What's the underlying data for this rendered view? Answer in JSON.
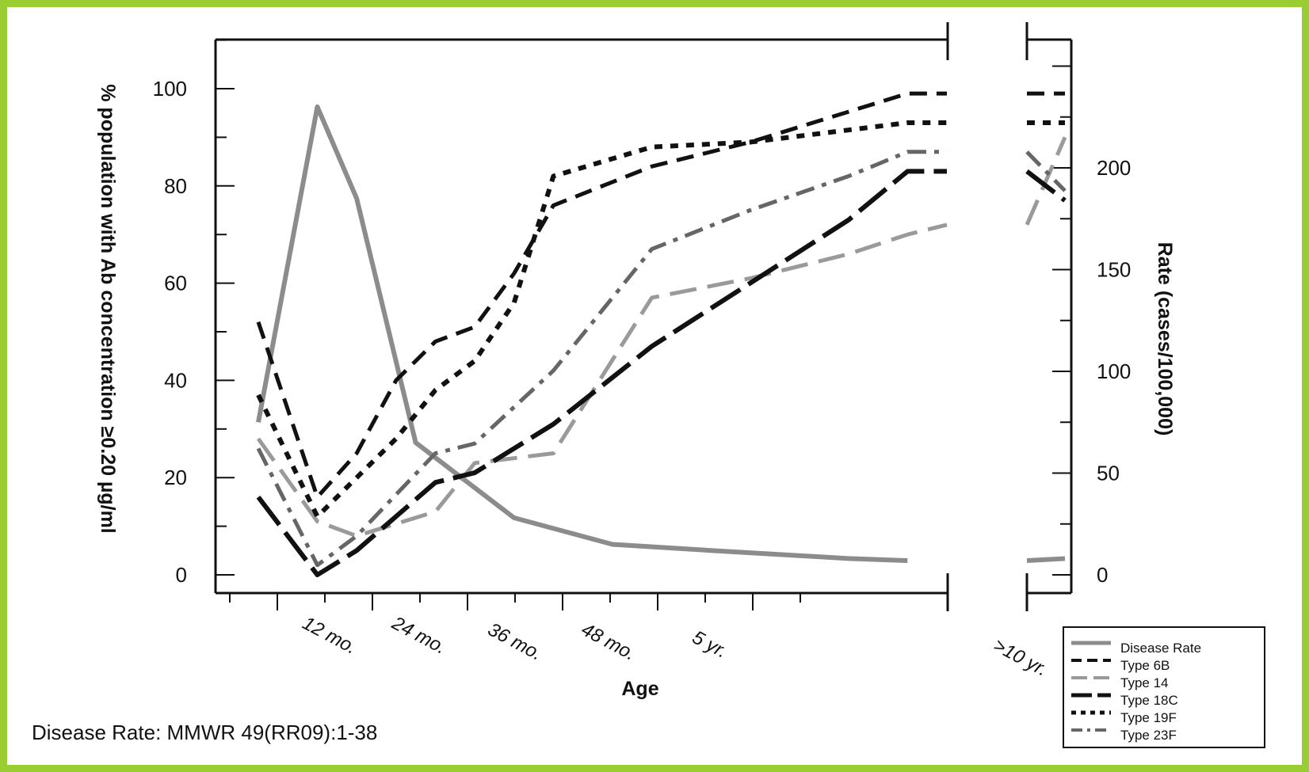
{
  "chart_data": {
    "type": "line",
    "xlabel": "Age",
    "ylabel_left": "% population with Ab concentration ≥0.20 µg/ml",
    "ylabel_right": "Rate (cases/100,000)",
    "x_ticks": [
      "12 mo.",
      "24 mo.",
      "36 mo.",
      "48 mo.",
      "5 yr.",
      ">10 yr."
    ],
    "ylim_left": [
      0,
      110
    ],
    "yticks_left": [
      "0",
      "20",
      "40",
      "60",
      "80",
      "100"
    ],
    "ylim_right": [
      0,
      250
    ],
    "yticks_right": [
      "0",
      "50",
      "100",
      "150",
      "200"
    ],
    "grid": false,
    "legend_position": "bottom-right",
    "series": [
      {
        "name": "Disease Rate",
        "axis": "right",
        "color": "#8c8c8c",
        "style": "solid",
        "points": [
          [
            3,
            75
          ],
          [
            6,
            230
          ],
          [
            8,
            185
          ],
          [
            11,
            65
          ],
          [
            16,
            28
          ],
          [
            21,
            15
          ],
          [
            26,
            12
          ],
          [
            33,
            8
          ],
          [
            36,
            7
          ],
          [
            42,
            8
          ]
        ]
      },
      {
        "name": "Type 6B",
        "axis": "left",
        "color": "#111111",
        "style": "dashed",
        "points": [
          [
            3,
            52
          ],
          [
            6,
            16
          ],
          [
            8,
            25
          ],
          [
            10,
            40
          ],
          [
            12,
            48
          ],
          [
            14,
            51
          ],
          [
            16,
            62
          ],
          [
            18,
            76
          ],
          [
            23,
            84
          ],
          [
            28,
            89
          ],
          [
            36,
            99
          ],
          [
            38,
            99
          ],
          [
            42,
            99
          ]
        ]
      },
      {
        "name": "Type 14",
        "axis": "left",
        "color": "#9a9a9a",
        "style": "long-dash",
        "points": [
          [
            3,
            28
          ],
          [
            6,
            11
          ],
          [
            8,
            8
          ],
          [
            12,
            13
          ],
          [
            14,
            23
          ],
          [
            18,
            25
          ],
          [
            23,
            57
          ],
          [
            28,
            61
          ],
          [
            33,
            66
          ],
          [
            36,
            70
          ],
          [
            38,
            72
          ],
          [
            42,
            90
          ]
        ]
      },
      {
        "name": "Type 18C",
        "axis": "left",
        "color": "#111111",
        "style": "long-dash-solid",
        "points": [
          [
            3,
            16
          ],
          [
            6,
            0
          ],
          [
            8,
            5
          ],
          [
            12,
            19
          ],
          [
            14,
            21
          ],
          [
            18,
            31
          ],
          [
            23,
            47
          ],
          [
            28,
            60
          ],
          [
            33,
            73
          ],
          [
            36,
            83
          ],
          [
            38,
            83
          ],
          [
            42,
            77
          ]
        ]
      },
      {
        "name": "Type 19F",
        "axis": "left",
        "color": "#111111",
        "style": "dotted",
        "points": [
          [
            3,
            37
          ],
          [
            6,
            12
          ],
          [
            8,
            20
          ],
          [
            10,
            28
          ],
          [
            12,
            38
          ],
          [
            14,
            44
          ],
          [
            16,
            56
          ],
          [
            18,
            82
          ],
          [
            23,
            88
          ],
          [
            28,
            89
          ],
          [
            36,
            93
          ],
          [
            38,
            93
          ],
          [
            42,
            93
          ]
        ]
      },
      {
        "name": "Type 23F",
        "axis": "left",
        "color": "#666666",
        "style": "dash-dot",
        "points": [
          [
            3,
            26
          ],
          [
            6,
            2
          ],
          [
            8,
            8
          ],
          [
            12,
            25
          ],
          [
            14,
            27
          ],
          [
            18,
            42
          ],
          [
            23,
            67
          ],
          [
            28,
            75
          ],
          [
            33,
            82
          ],
          [
            36,
            87
          ],
          [
            38,
            87
          ],
          [
            42,
            79
          ]
        ]
      }
    ]
  },
  "footnote": "Disease Rate: MMWR 49(RR09):1-38"
}
